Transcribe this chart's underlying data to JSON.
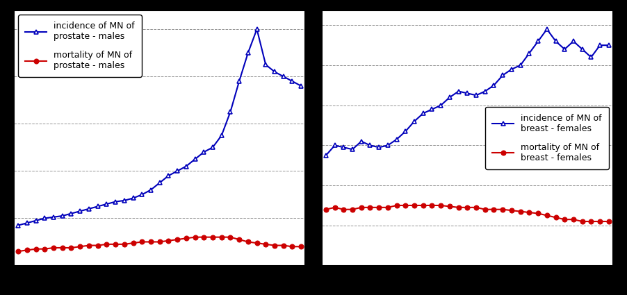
{
  "left": {
    "legend1": "incidence of MN of\nprostate - males",
    "legend2": "mortality of MN of\nprostate - males",
    "incidence": [
      17,
      18,
      19,
      20,
      20.5,
      21,
      22,
      23,
      24,
      25,
      26,
      27,
      27.5,
      28.5,
      30,
      32,
      35,
      38,
      40,
      42,
      45,
      48,
      50,
      55,
      65,
      78,
      90,
      100,
      85,
      82,
      80,
      78,
      76
    ],
    "mortality": [
      6,
      6.5,
      7,
      7,
      7.5,
      7.5,
      7.5,
      8,
      8.5,
      8.5,
      9,
      9,
      9,
      9.5,
      10,
      10,
      10,
      10.5,
      11,
      11.5,
      12,
      12,
      12,
      12,
      12,
      11,
      10,
      9.5,
      9,
      8.5,
      8.5,
      8,
      8
    ]
  },
  "right": {
    "legend1": "incidence of MN of\nbreast - females",
    "legend2": "mortality of MN of\nbreast - females",
    "incidence": [
      55,
      60,
      59,
      58,
      62,
      60,
      59,
      60,
      63,
      67,
      72,
      76,
      78,
      80,
      84,
      87,
      86,
      85,
      87,
      90,
      95,
      98,
      100,
      106,
      112,
      118,
      112,
      108,
      112,
      108,
      104,
      110,
      110
    ],
    "mortality": [
      28,
      29,
      28,
      28,
      29,
      29,
      29,
      29,
      30,
      30,
      30,
      30,
      30,
      30,
      29.5,
      29,
      29,
      29,
      28,
      28,
      28,
      27.5,
      27,
      26.5,
      26,
      25,
      24,
      23,
      23,
      22,
      22,
      22,
      22
    ]
  },
  "n_points": 33,
  "incidence_color": "#0000bb",
  "mortality_color": "#cc0000",
  "background_color": "#ffffff",
  "grid_color": "#888888",
  "line_width": 1.5,
  "marker_size": 5,
  "left_legend_loc": "upper left",
  "right_legend_loc": "center right",
  "legend_fontsize": 9,
  "tick_fontsize": 7
}
